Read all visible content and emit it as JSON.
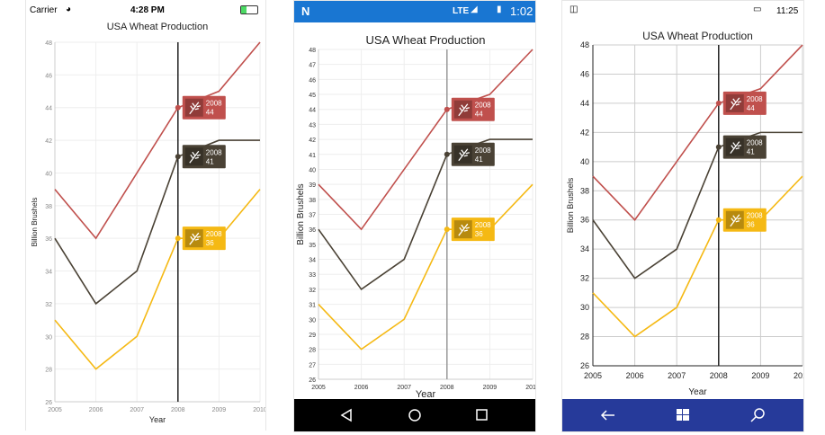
{
  "screens": [
    {
      "platform": "ios",
      "status": {
        "carrier": "Carrier",
        "time": "4:28 PM"
      },
      "chart_title": "USA Wheat Production",
      "x_label": "Year",
      "y_label": "Billion Brushels"
    },
    {
      "platform": "android",
      "status": {
        "time": "1:02",
        "network": "LTE"
      },
      "chart_title": "USA Wheat Production",
      "x_label": "Year",
      "y_label": "Billion Brushels"
    },
    {
      "platform": "windows",
      "status": {
        "time": "11:25"
      },
      "chart_title": "USA Wheat Production",
      "x_label": "Year",
      "y_label": "Billion Brushels"
    }
  ],
  "colors": {
    "red": "#c0504d",
    "dark": "#4a4235",
    "yellow": "#f5b914",
    "android_status": "#1976d2",
    "windows_nav": "#263a9a"
  },
  "chart_data": {
    "type": "line",
    "title": "USA Wheat Production",
    "xlabel": "Year",
    "ylabel": "Billion Brushels",
    "categories": [
      "2005",
      "2006",
      "2007",
      "2008",
      "2009",
      "2010"
    ],
    "ylim": [
      26,
      48
    ],
    "series": [
      {
        "color": "#c0504d",
        "values": [
          39,
          36,
          40,
          44,
          45,
          48
        ]
      },
      {
        "color": "#4a4235",
        "values": [
          36,
          32,
          34,
          41,
          42,
          42
        ]
      },
      {
        "color": "#f5b914",
        "values": [
          31,
          28,
          30,
          36,
          36,
          39
        ]
      }
    ],
    "trackball": {
      "category": "2008",
      "labels": [
        [
          "2008",
          "44"
        ],
        [
          "2008",
          "41"
        ],
        [
          "2008",
          "36"
        ]
      ]
    }
  }
}
